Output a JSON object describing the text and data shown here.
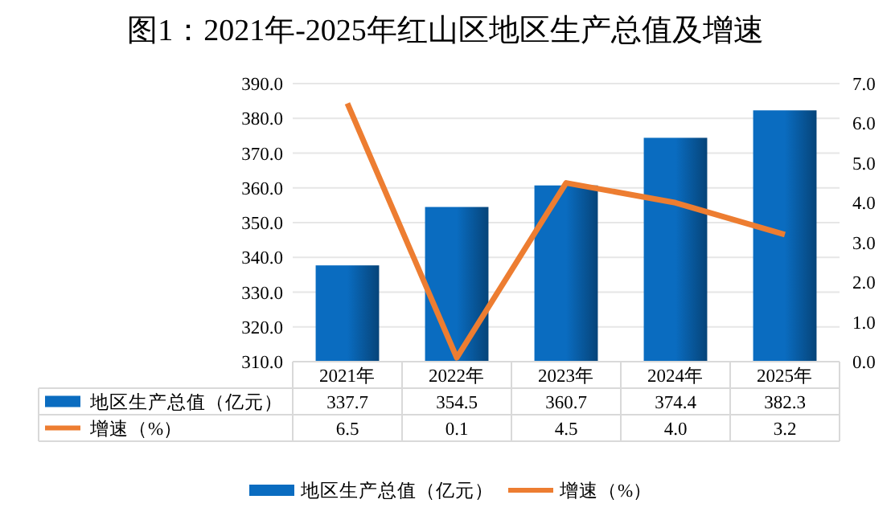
{
  "chart_data": {
    "type": "bar",
    "title": "图1：2021年-2025年红山区地区生产总值及增速",
    "categories": [
      "2021年",
      "2022年",
      "2023年",
      "2024年",
      "2025年"
    ],
    "series": [
      {
        "name": "地区生产总值（亿元）",
        "color": "#0a6cc0",
        "values": [
          337.7,
          354.5,
          360.7,
          374.4,
          382.3
        ]
      },
      {
        "name": "增速（%）",
        "type": "line",
        "axis": "y2",
        "color": "#ed7d31",
        "values": [
          6.5,
          0.1,
          4.5,
          4.0,
          3.2
        ],
        "value_labels": [
          "6.5",
          "0.1",
          "4.5",
          "4.0",
          "3.2"
        ]
      }
    ],
    "ylim": [
      310,
      390
    ],
    "yticks": [
      {
        "value": 310,
        "label": "310.0"
      },
      {
        "value": 320,
        "label": "320.0"
      },
      {
        "value": 330,
        "label": "330.0"
      },
      {
        "value": 340,
        "label": "340.0"
      },
      {
        "value": 350,
        "label": "350.0"
      },
      {
        "value": 360,
        "label": "360.0"
      },
      {
        "value": 370,
        "label": "370.0"
      },
      {
        "value": 380,
        "label": "380.0"
      },
      {
        "value": 390,
        "label": "390.0"
      }
    ],
    "y2lim": [
      0,
      7
    ],
    "y2ticks": [
      {
        "value": 0,
        "label": "0.0"
      },
      {
        "value": 1,
        "label": "1.0"
      },
      {
        "value": 2,
        "label": "2.0"
      },
      {
        "value": 3,
        "label": "3.0"
      },
      {
        "value": 4,
        "label": "4.0"
      },
      {
        "value": 5,
        "label": "5.0"
      },
      {
        "value": 6,
        "label": "6.0"
      },
      {
        "value": 7,
        "label": "7.0"
      }
    ],
    "grid": "y",
    "legend": "bottom",
    "data_labels": true,
    "marker": "none"
  }
}
